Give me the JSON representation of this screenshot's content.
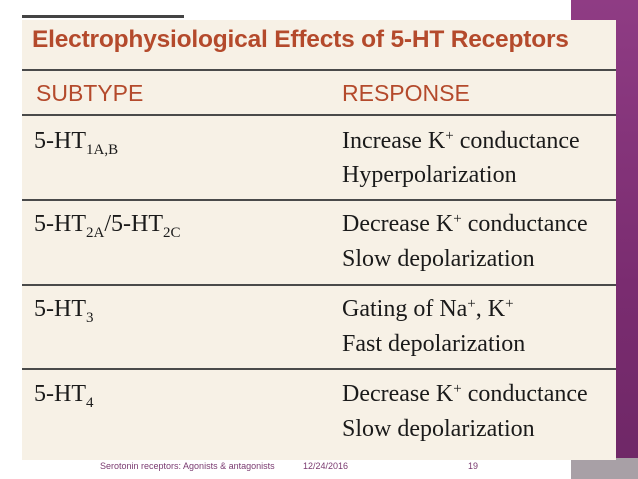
{
  "title": "Electrophysiological Effects of 5-HT Receptors",
  "headers": {
    "subtype": "SUBTYPE",
    "response": "RESPONSE"
  },
  "rows": [
    {
      "subtype_base": "5-HT",
      "subtype_sub": "1A,B",
      "subtype_mid": "",
      "subtype_base2": "",
      "subtype_sub2": "",
      "line1_pre": "Increase K",
      "line1_sup": "+",
      "line1_post": " conductance",
      "line2": "Hyperpolarization"
    },
    {
      "subtype_base": "5-HT",
      "subtype_sub": "2A",
      "subtype_mid": "/",
      "subtype_base2": "5-HT",
      "subtype_sub2": "2C",
      "line1_pre": "Decrease K",
      "line1_sup": "+",
      "line1_post": " conductance",
      "line2": "Slow depolarization"
    },
    {
      "subtype_base": "5-HT",
      "subtype_sub": "3",
      "subtype_mid": "",
      "subtype_base2": "",
      "subtype_sub2": "",
      "line1_pre": "Gating of Na",
      "line1_sup": "+",
      "line1_mid": ", K",
      "line1_sup2": "+",
      "line2": "Fast depolarization"
    },
    {
      "subtype_base": "5-HT",
      "subtype_sub": "4",
      "subtype_mid": "",
      "subtype_base2": "",
      "subtype_sub2": "",
      "line1_pre": "Decrease K",
      "line1_sup": "+",
      "line1_post": " conductance",
      "line2": "Slow depolarization"
    }
  ],
  "footer": {
    "caption": "Serotonin receptors: Agonists & antagonists",
    "date": "12/24/2016",
    "page": "19"
  },
  "colors": {
    "accent": "#b44a2c",
    "strip": "#7d2f73",
    "table_bg": "#f7f1e6"
  }
}
